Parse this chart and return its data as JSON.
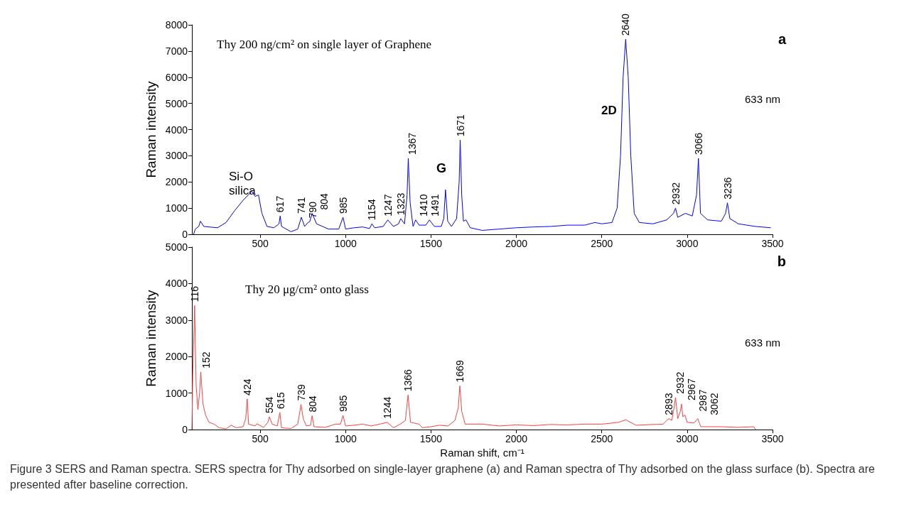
{
  "chart_data": [
    {
      "type": "line",
      "title": "a",
      "ylabel": "Raman intensity",
      "xlim": [
        100,
        3500
      ],
      "xticks": [
        500,
        1000,
        1500,
        2000,
        2500,
        3000,
        3500
      ],
      "ylim": [
        0,
        8000
      ],
      "yticks": [
        0,
        1000,
        2000,
        3000,
        4000,
        5000,
        6000,
        7000,
        8000
      ],
      "grid": false,
      "marker": "none",
      "line_style": "solid",
      "series": [
        {
          "color": "#0000ff",
          "x": [
            110,
            120,
            140,
            150,
            170,
            200,
            250,
            300,
            350,
            400,
            430,
            450,
            470,
            490,
            510,
            540,
            580,
            610,
            617,
            625,
            680,
            720,
            741,
            760,
            780,
            790,
            804,
            830,
            900,
            960,
            985,
            1000,
            1050,
            1100,
            1140,
            1154,
            1170,
            1220,
            1247,
            1280,
            1310,
            1323,
            1345,
            1360,
            1367,
            1378,
            1395,
            1410,
            1430,
            1470,
            1491,
            1520,
            1560,
            1575,
            1585,
            1598,
            1620,
            1650,
            1665,
            1671,
            1680,
            1690,
            1705,
            1730,
            1800,
            1900,
            2000,
            2100,
            2200,
            2300,
            2400,
            2460,
            2500,
            2560,
            2590,
            2610,
            2625,
            2640,
            2655,
            2670,
            2690,
            2720,
            2800,
            2880,
            2920,
            2932,
            2945,
            2990,
            3030,
            3055,
            3066,
            3078,
            3120,
            3200,
            3225,
            3236,
            3250,
            3300,
            3400,
            3490
          ],
          "values": [
            0,
            200,
            300,
            500,
            300,
            280,
            250,
            450,
            900,
            1300,
            1500,
            1650,
            1450,
            1500,
            800,
            300,
            250,
            400,
            700,
            300,
            100,
            200,
            650,
            300,
            450,
            480,
            800,
            400,
            200,
            200,
            650,
            200,
            250,
            280,
            220,
            400,
            250,
            300,
            550,
            300,
            400,
            600,
            400,
            1500,
            2900,
            1200,
            300,
            550,
            350,
            350,
            550,
            300,
            300,
            600,
            1700,
            500,
            300,
            600,
            2000,
            3600,
            1500,
            500,
            550,
            250,
            150,
            200,
            250,
            280,
            300,
            350,
            350,
            450,
            400,
            450,
            1000,
            3000,
            6000,
            7450,
            6000,
            3000,
            800,
            450,
            400,
            550,
            800,
            1000,
            650,
            800,
            700,
            1500,
            2900,
            800,
            550,
            500,
            800,
            1200,
            600,
            400,
            300,
            250
          ]
        }
      ],
      "annotations": [
        "Thy 200 ng/cm² on single layer of Graphene",
        "Si-O silica",
        "G",
        "2D",
        "633 nm",
        {
          "text": "617",
          "x": 617,
          "y": 700
        },
        {
          "text": "741",
          "x": 741,
          "y": 650
        },
        {
          "text": "790",
          "x": 790,
          "y": 480
        },
        {
          "text": "804",
          "x": 804,
          "y": 800
        },
        {
          "text": "985",
          "x": 985,
          "y": 650
        },
        {
          "text": "1154",
          "x": 1154,
          "y": 400
        },
        {
          "text": "1247",
          "x": 1247,
          "y": 550
        },
        {
          "text": "1323",
          "x": 1323,
          "y": 600
        },
        {
          "text": "1367",
          "x": 1367,
          "y": 2900
        },
        {
          "text": "1410",
          "x": 1410,
          "y": 550
        },
        {
          "text": "1491",
          "x": 1491,
          "y": 550
        },
        {
          "text": "1671",
          "x": 1671,
          "y": 3600
        },
        {
          "text": "2640",
          "x": 2640,
          "y": 7450
        },
        {
          "text": "2932",
          "x": 2932,
          "y": 1000
        },
        {
          "text": "3066",
          "x": 3066,
          "y": 2900
        },
        {
          "text": "3236",
          "x": 3236,
          "y": 1200
        }
      ]
    },
    {
      "type": "line",
      "title": "b",
      "xlabel": "Raman shift, cm⁻¹",
      "ylabel": "Raman intensity",
      "xlim": [
        100,
        3500
      ],
      "xticks": [
        500,
        1000,
        1500,
        2000,
        2500,
        3000,
        3500
      ],
      "ylim": [
        0,
        5000
      ],
      "yticks": [
        0,
        1000,
        2000,
        3000,
        4000,
        5000
      ],
      "grid": false,
      "marker": "none",
      "line_style": "solid",
      "series": [
        {
          "color": "#ff4040",
          "x": [
            100,
            105,
            116,
            125,
            135,
            145,
            152,
            165,
            180,
            200,
            230,
            260,
            300,
            330,
            360,
            400,
            415,
            424,
            432,
            470,
            480,
            520,
            545,
            554,
            570,
            600,
            615,
            625,
            680,
            720,
            739,
            752,
            770,
            795,
            804,
            815,
            880,
            940,
            970,
            985,
            1000,
            1050,
            1100,
            1150,
            1200,
            1244,
            1280,
            1320,
            1350,
            1366,
            1380,
            1430,
            1450,
            1500,
            1550,
            1600,
            1640,
            1660,
            1669,
            1680,
            1700,
            1800,
            1900,
            2000,
            2100,
            2200,
            2300,
            2400,
            2500,
            2600,
            2640,
            2700,
            2800,
            2860,
            2880,
            2893,
            2910,
            2920,
            2932,
            2945,
            2960,
            2967,
            2975,
            2987,
            3000,
            3040,
            3062,
            3080,
            3200,
            3300,
            3390,
            3400
          ],
          "values": [
            0,
            1500,
            3400,
            1200,
            550,
            1000,
            1580,
            700,
            400,
            200,
            150,
            50,
            20,
            120,
            50,
            80,
            300,
            840,
            150,
            100,
            160,
            60,
            200,
            350,
            150,
            100,
            470,
            50,
            30,
            150,
            690,
            300,
            100,
            120,
            380,
            80,
            60,
            150,
            150,
            390,
            100,
            120,
            150,
            100,
            150,
            200,
            50,
            150,
            250,
            950,
            200,
            150,
            50,
            80,
            120,
            100,
            250,
            600,
            1200,
            500,
            150,
            150,
            100,
            130,
            110,
            140,
            130,
            150,
            150,
            200,
            270,
            120,
            140,
            150,
            250,
            300,
            250,
            500,
            880,
            300,
            500,
            700,
            350,
            400,
            200,
            180,
            300,
            80,
            80,
            60,
            80,
            0
          ]
        }
      ],
      "annotations": [
        "Thy 20 μg/cm² onto glass",
        "633 nm",
        {
          "text": "116",
          "x": 116,
          "y": 3400
        },
        {
          "text": "152",
          "x": 152,
          "y": 1580
        },
        {
          "text": "424",
          "x": 424,
          "y": 840
        },
        {
          "text": "554",
          "x": 554,
          "y": 350
        },
        {
          "text": "615",
          "x": 615,
          "y": 470
        },
        {
          "text": "739",
          "x": 739,
          "y": 690
        },
        {
          "text": "804",
          "x": 804,
          "y": 380
        },
        {
          "text": "985",
          "x": 985,
          "y": 390
        },
        {
          "text": "1244",
          "x": 1244,
          "y": 200
        },
        {
          "text": "1366",
          "x": 1366,
          "y": 950
        },
        {
          "text": "1669",
          "x": 1669,
          "y": 1200
        },
        {
          "text": "2893",
          "x": 2893,
          "y": 300
        },
        {
          "text": "2932",
          "x": 2932,
          "y": 880
        },
        {
          "text": "2967",
          "x": 2967,
          "y": 700
        },
        {
          "text": "2987",
          "x": 2987,
          "y": 400
        },
        {
          "text": "3062",
          "x": 3062,
          "y": 300
        },
        "Figure 3 SERS and Raman spectra. SERS spectra for Thy adsorbed on single-layer graphene (a) and Raman spectra of Thy adsorbed on the glass surface (b). Spectra are presented after baseline correction."
      ]
    }
  ]
}
